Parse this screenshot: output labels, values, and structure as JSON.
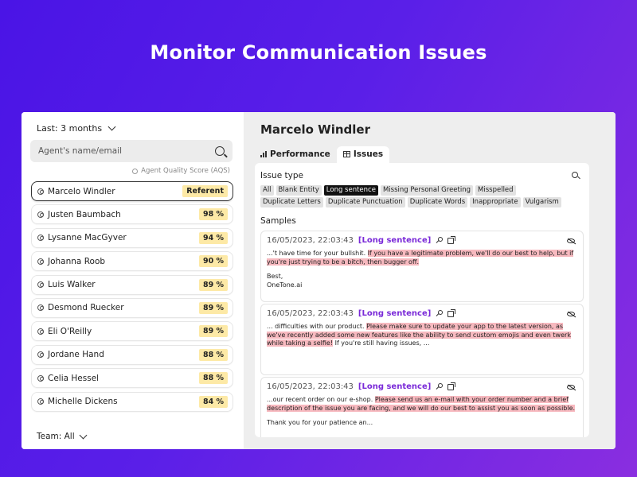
{
  "page": {
    "title": "Monitor Communication Issues"
  },
  "sidebar": {
    "period_label": "Last: 3 months",
    "search_placeholder": "Agent's name/email",
    "score_label": "Agent Quality Score (AQS)",
    "agents": [
      {
        "name": "Marcelo Windler",
        "score": "Referent"
      },
      {
        "name": "Justen Baumbach",
        "score": "98 %"
      },
      {
        "name": "Lysanne MacGyver",
        "score": "94 %"
      },
      {
        "name": "Johanna Roob",
        "score": "90 %"
      },
      {
        "name": "Luis Walker",
        "score": "89 %"
      },
      {
        "name": "Desmond Ruecker",
        "score": "89 %"
      },
      {
        "name": "Eli O'Reilly",
        "score": "89 %"
      },
      {
        "name": "Jordane Hand",
        "score": "88 %"
      },
      {
        "name": "Celia Hessel",
        "score": "88 %"
      },
      {
        "name": "Michelle Dickens",
        "score": "84 %"
      }
    ],
    "team_label": "Team: All"
  },
  "main": {
    "agent_title": "Marcelo Windler",
    "tabs": [
      {
        "label": "Performance"
      },
      {
        "label": "Issues"
      }
    ],
    "issue_type_label": "Issue type",
    "filters": [
      "All",
      "Blank Entity",
      "Long sentence",
      "Missing Personal Greeting",
      "Misspelled",
      "Duplicate Letters",
      "Duplicate Punctuation",
      "Duplicate Words",
      "Inappropriate",
      "Vulgarism"
    ],
    "samples_label": "Samples",
    "samples": [
      {
        "time": "16/05/2023, 22:03:43",
        "tag": "[Long sentence]",
        "pre": "...'t have time for your bullshit. ",
        "highlight": "If you have a legitimate problem, we'll do our best to help, but if you're just trying to be a bitch, then bugger off.",
        "post": "",
        "footer1": "Best,",
        "footer2": "OneTone.ai"
      },
      {
        "time": "16/05/2023, 22:03:43",
        "tag": "[Long sentence]",
        "pre": "... difficulties with our product. ",
        "highlight": "Please make sure to update your app to the latest version, as we've recently added some new features like the ability to send custom emojis and even twerk while taking a selfie!",
        "post": " If you're still having issues, ...",
        "footer1": "",
        "footer2": ""
      },
      {
        "time": "16/05/2023, 22:03:43",
        "tag": "[Long sentence]",
        "pre": "...our recent order on our e-shop. ",
        "highlight": "Please send us an e-mail with your order number and a brief description of the issue you are facing, and we will do our best to assist you as soon as possible.",
        "post": "",
        "footer1": "Thank you for your patience an...",
        "footer2": ""
      }
    ]
  }
}
